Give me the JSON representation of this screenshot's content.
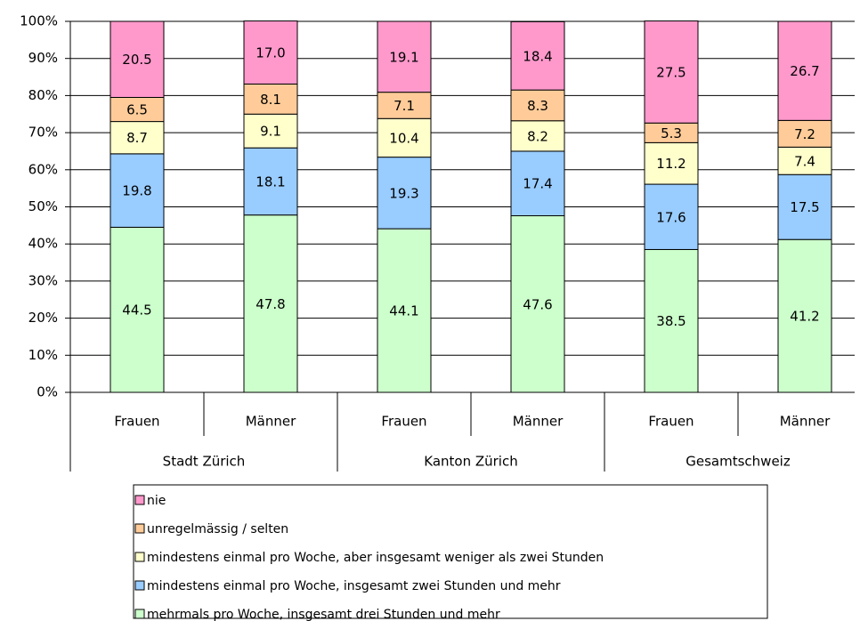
{
  "chart_data": {
    "type": "stacked_bar",
    "categories": [
      "Frauen",
      "Männer",
      "Frauen",
      "Männer",
      "Frauen",
      "Männer"
    ],
    "groups": [
      "Stadt Zürich",
      "Kanton Zürich",
      "Gesamtschweiz"
    ],
    "series": [
      {
        "name": "mehrmals pro Woche, insgesamt drei Stunden und mehr",
        "color": "#ccffcc",
        "values": [
          44.5,
          47.8,
          44.1,
          47.6,
          38.5,
          41.2
        ]
      },
      {
        "name": "mindestens einmal pro Woche, insgesamt zwei Stunden und mehr",
        "color": "#99ccff",
        "values": [
          19.8,
          18.1,
          19.3,
          17.4,
          17.6,
          17.5
        ]
      },
      {
        "name": "mindestens einmal pro Woche, aber insgesamt weniger als zwei Stunden",
        "color": "#ffffcc",
        "values": [
          8.7,
          9.1,
          10.4,
          8.2,
          11.2,
          7.4
        ]
      },
      {
        "name": "unregelmässig / selten",
        "color": "#ffcc99",
        "values": [
          6.5,
          8.1,
          7.1,
          8.3,
          5.3,
          7.2
        ]
      },
      {
        "name": "nie",
        "color": "#ff99cc",
        "values": [
          20.5,
          17,
          19.1,
          18.4,
          27.5,
          26.7
        ],
        "value_labels": [
          "20.5",
          "17.0",
          "19.1",
          "18.4",
          "27.5",
          "26.7"
        ]
      }
    ],
    "ylim": [
      0,
      100
    ],
    "yticks": [
      {
        "value": 0,
        "label": "0%"
      },
      {
        "value": 10,
        "label": "10%"
      },
      {
        "value": 20,
        "label": "20%"
      },
      {
        "value": 30,
        "label": "30%"
      },
      {
        "value": 40,
        "label": "40%"
      },
      {
        "value": 50,
        "label": "50%"
      },
      {
        "value": 60,
        "label": "60%"
      },
      {
        "value": 70,
        "label": "70%"
      },
      {
        "value": 80,
        "label": "80%"
      },
      {
        "value": 90,
        "label": "90%"
      },
      {
        "value": 100,
        "label": "100%"
      }
    ],
    "grid": true
  }
}
